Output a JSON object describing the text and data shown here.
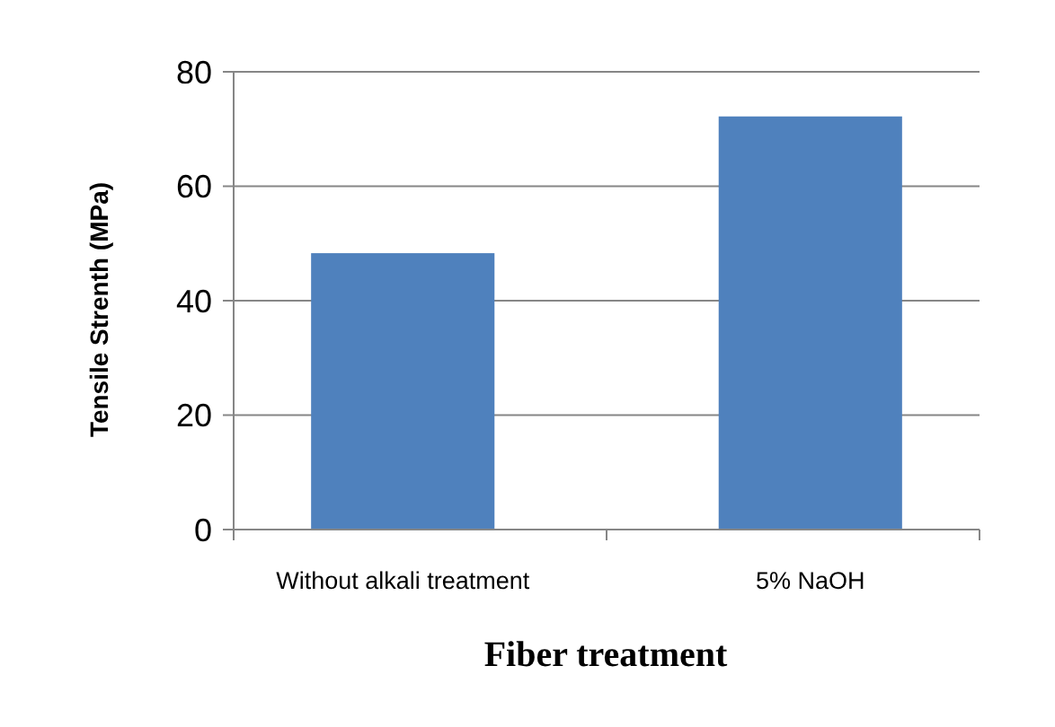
{
  "chart_data": {
    "type": "bar",
    "xlabel": "Fiber treatment",
    "ylabel": "Tensile Strenth (MPa)",
    "categories": [
      "Without alkali treatment",
      "5% NaOH"
    ],
    "values": [
      48.3,
      72.2
    ],
    "color": "#4f81bd",
    "ylim": [
      0,
      80
    ],
    "yticks": [
      0,
      20,
      40,
      60,
      80
    ],
    "grid": "y"
  }
}
